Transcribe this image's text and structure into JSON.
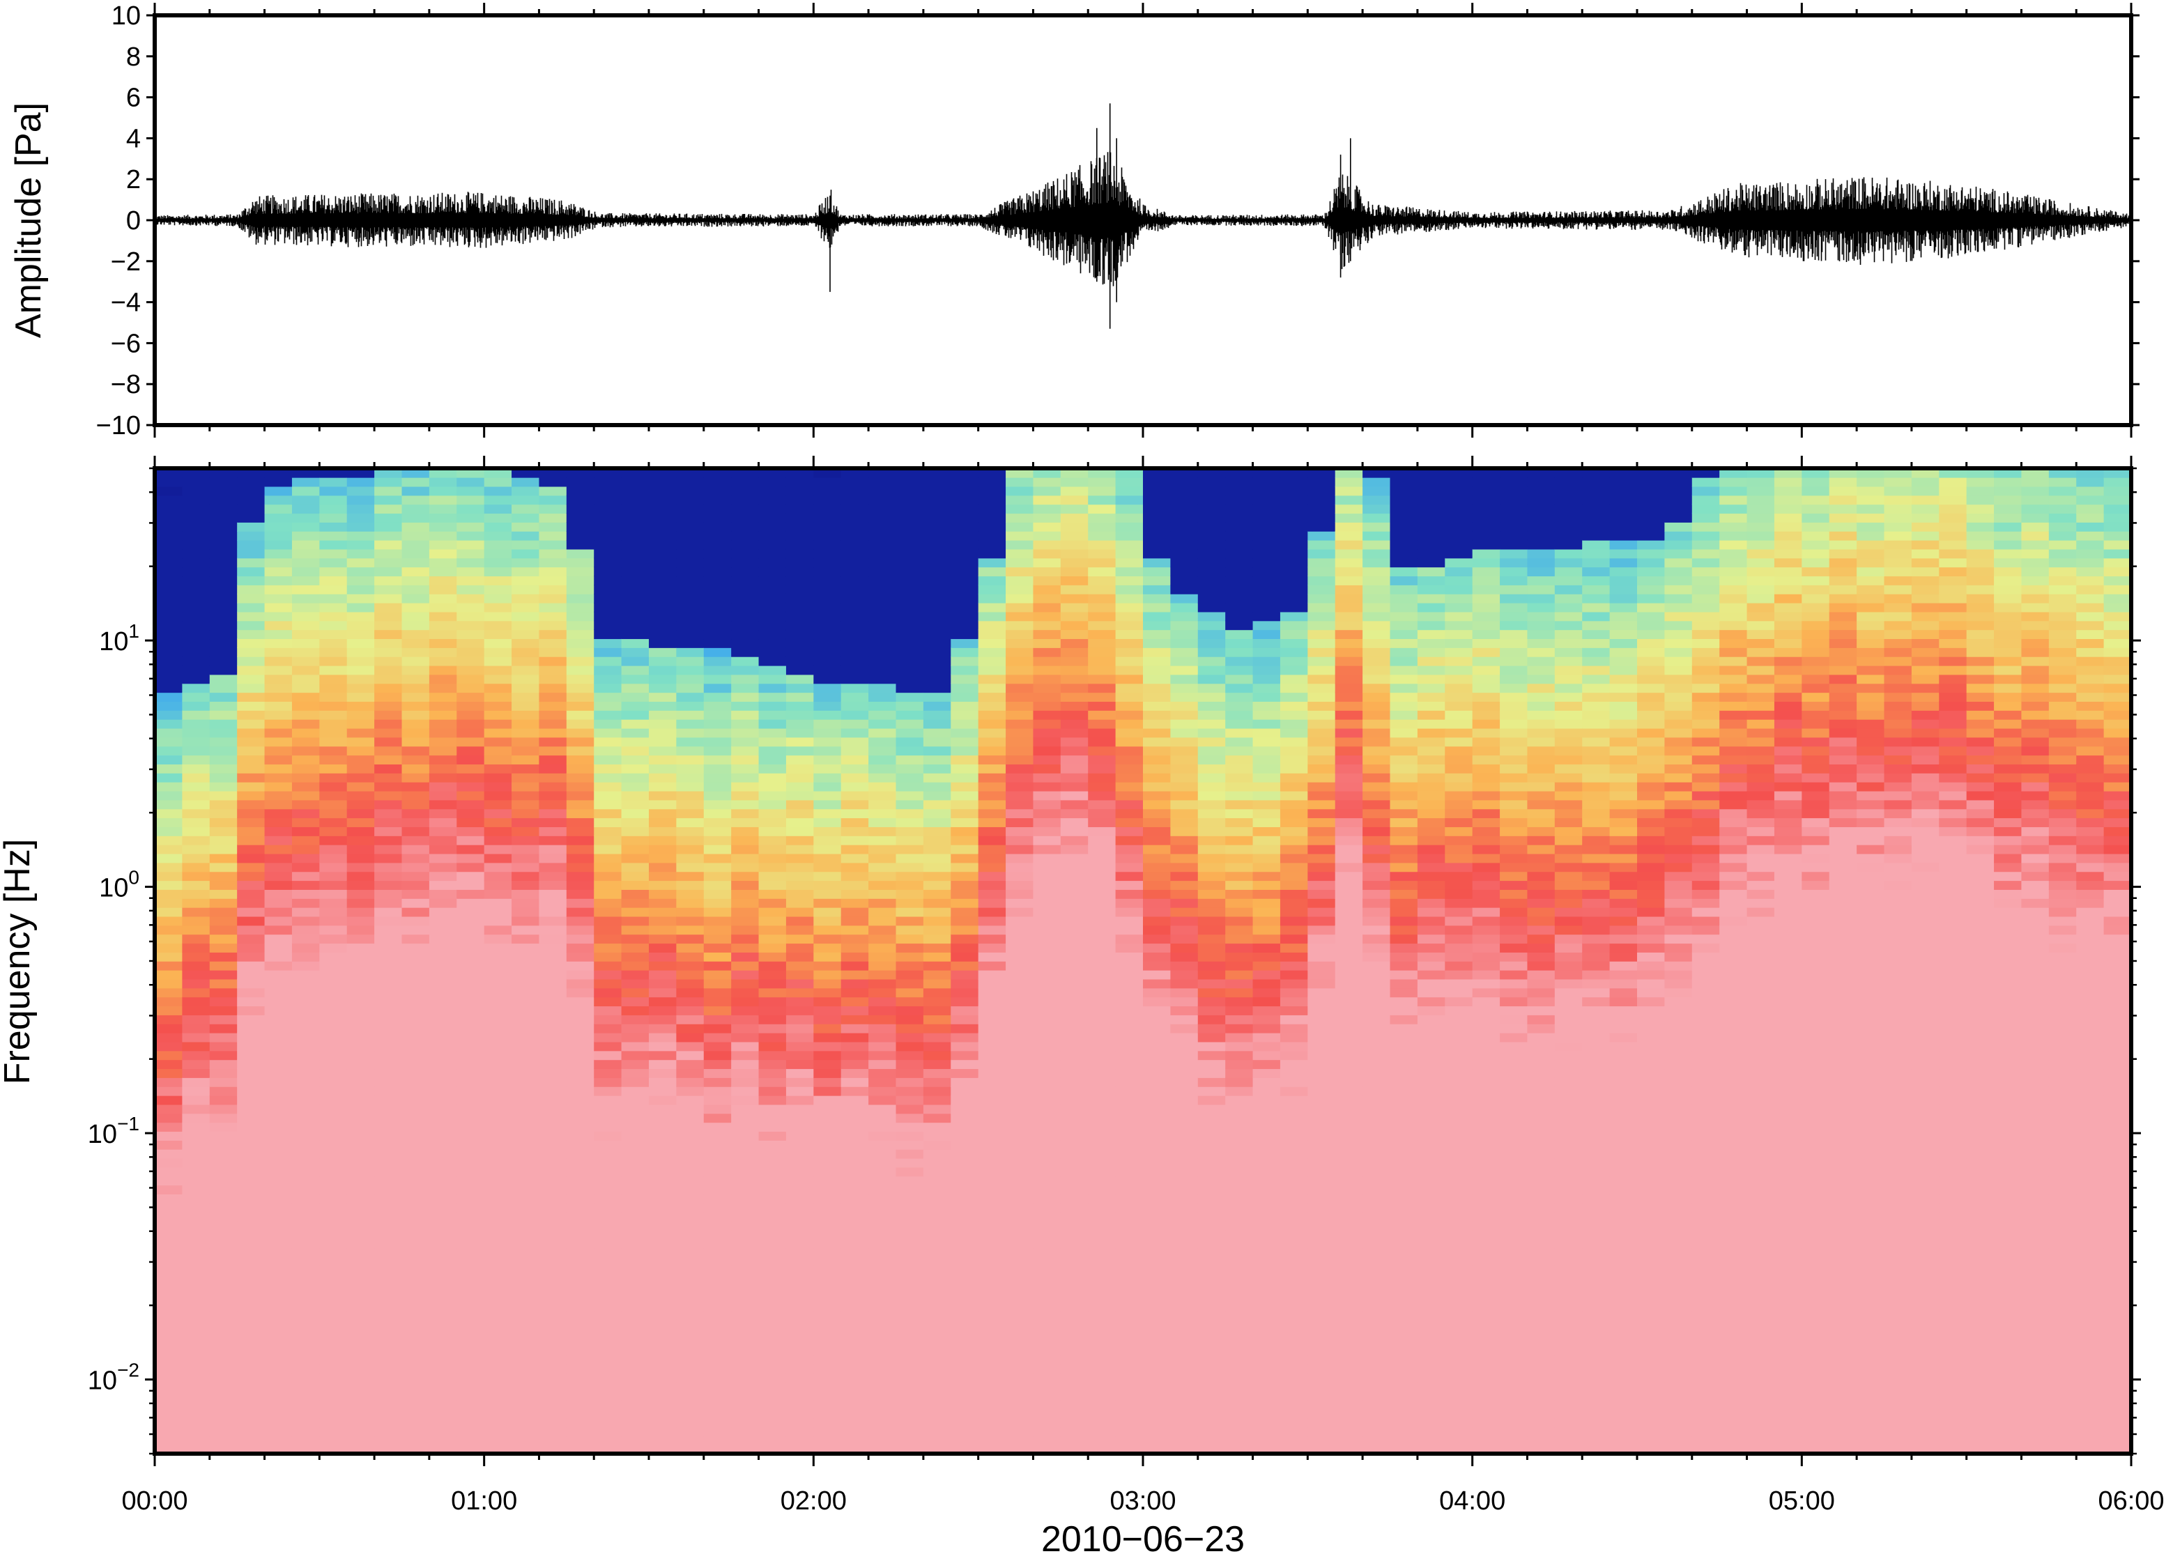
{
  "chart_data": [
    {
      "type": "line",
      "panel": "waveform",
      "ylabel": "Amplitude [Pa]",
      "ylim": [
        -10,
        10
      ],
      "yticks": [
        -10,
        -8,
        -6,
        -4,
        -2,
        0,
        2,
        4,
        6,
        8,
        10
      ],
      "ytick_labels": [
        "−10",
        "−8",
        "−6",
        "−4",
        "−2",
        "0",
        "2",
        "4",
        "6",
        "8",
        "10"
      ],
      "xlim_hours": [
        0,
        6
      ],
      "line_color": "#000000",
      "envelope": {
        "description_hours": "approximate amplitude envelope (Pa) by time in hours",
        "hours": [
          0,
          0.25,
          0.3,
          0.5,
          1.0,
          1.25,
          1.35,
          2.0,
          2.05,
          2.08,
          2.5,
          2.7,
          2.9,
          3.0,
          3.1,
          3.55,
          3.6,
          3.7,
          4.0,
          4.6,
          4.8,
          5.2,
          5.5,
          6.0
        ],
        "amplitude": [
          0.25,
          0.3,
          1.2,
          1.3,
          1.4,
          1.0,
          0.35,
          0.3,
          1.6,
          0.3,
          0.3,
          1.8,
          3.5,
          0.8,
          0.25,
          0.3,
          2.5,
          0.8,
          0.4,
          0.5,
          1.8,
          2.2,
          1.8,
          0.3
        ]
      },
      "spikes": [
        {
          "hour": 2.05,
          "min": -3.5,
          "max": 1.2
        },
        {
          "hour": 2.86,
          "min": -3.0,
          "max": 4.5
        },
        {
          "hour": 2.9,
          "min": -5.3,
          "max": 5.7
        },
        {
          "hour": 2.92,
          "min": -4.0,
          "max": 4.0
        },
        {
          "hour": 3.6,
          "min": -2.8,
          "max": 3.2
        },
        {
          "hour": 3.63,
          "min": -2.0,
          "max": 4.0
        }
      ]
    },
    {
      "type": "heatmap",
      "panel": "spectrogram",
      "ylabel": "Frequency [Hz]",
      "yscale": "log",
      "ylim_hz": [
        0.005,
        50
      ],
      "yticks": [
        {
          "mantissa": "10",
          "exponent": "−2"
        },
        {
          "mantissa": "10",
          "exponent": "−1"
        },
        {
          "mantissa": "10",
          "exponent": "0"
        },
        {
          "mantissa": "10",
          "exponent": "1"
        }
      ],
      "colormap": [
        "#0a0a78",
        "#1e3fd2",
        "#3aa6f0",
        "#7fe0c6",
        "#e6f08c",
        "#fbb454",
        "#f4504e",
        "#f8a8b0"
      ],
      "activity": {
        "description": "relative signal level (0-1) by time in hours, controls upper frequency extent",
        "hours": [
          0,
          0.25,
          0.3,
          0.6,
          1.0,
          1.25,
          1.35,
          1.8,
          2.0,
          2.4,
          2.5,
          2.65,
          2.9,
          3.05,
          3.3,
          3.5,
          3.6,
          3.68,
          3.8,
          4.0,
          4.6,
          4.75,
          5.0,
          5.2,
          5.5,
          5.9,
          6.0
        ],
        "level": [
          0.35,
          0.4,
          0.68,
          0.7,
          0.72,
          0.68,
          0.45,
          0.42,
          0.38,
          0.36,
          0.5,
          0.78,
          0.82,
          0.55,
          0.45,
          0.5,
          0.78,
          0.74,
          0.55,
          0.58,
          0.6,
          0.74,
          0.8,
          0.84,
          0.8,
          0.72,
          0.7
        ]
      }
    }
  ],
  "shared_x": {
    "xlim_hours": [
      0,
      6
    ],
    "tick_labels": [
      "00:00",
      "01:00",
      "02:00",
      "03:00",
      "04:00",
      "05:00",
      "06:00"
    ],
    "xlabel": "2010−06−23"
  }
}
